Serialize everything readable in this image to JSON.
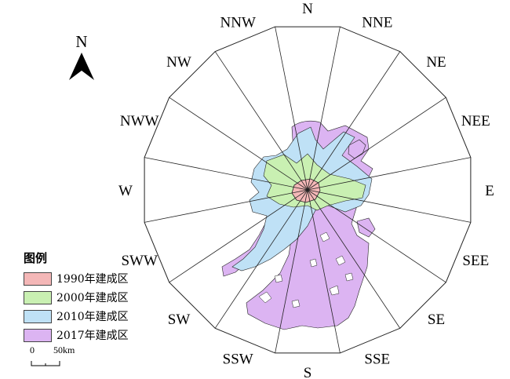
{
  "north_arrow": {
    "label": "N"
  },
  "directions": [
    "N",
    "NNE",
    "NE",
    "NEE",
    "E",
    "SEE",
    "SE",
    "SSE",
    "S",
    "SSW",
    "SW",
    "SWW",
    "W",
    "NWW",
    "NW",
    "NNW"
  ],
  "legend": {
    "title": "图例",
    "items": [
      {
        "label": "1990年建成区",
        "color": "#f4b7b7"
      },
      {
        "label": "2000年建成区",
        "color": "#c9f0b2"
      },
      {
        "label": "2010年建成区",
        "color": "#bfe1f6"
      },
      {
        "label": "2017年建成区",
        "color": "#dcb4f2"
      }
    ]
  },
  "scale_bar": {
    "start_label": "0",
    "end_label": "50km"
  }
}
